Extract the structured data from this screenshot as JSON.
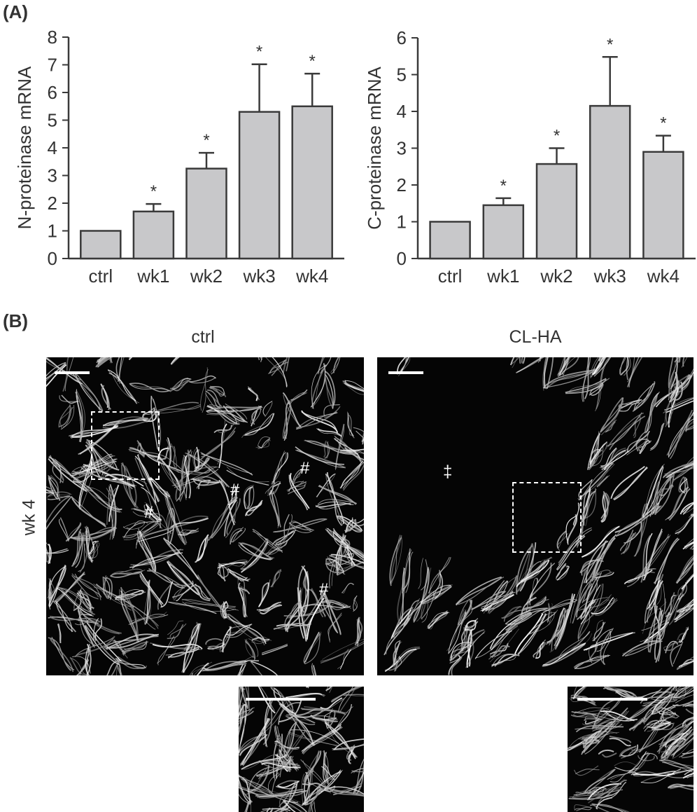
{
  "panel_a_label": "(A)",
  "panel_b_label": "(B)",
  "chart_data": [
    {
      "type": "bar",
      "categories": [
        "ctrl",
        "wk1",
        "wk2",
        "wk3",
        "wk4"
      ],
      "values": [
        1.0,
        1.7,
        3.25,
        5.3,
        5.5
      ],
      "error_upper": [
        0.0,
        0.27,
        0.57,
        1.72,
        1.18
      ],
      "significance": [
        "",
        "*",
        "*",
        "*",
        "*"
      ],
      "ylabel": "N-proteinase mRNA",
      "xlabel": "",
      "ylim": [
        0,
        8
      ],
      "yticks": [
        0,
        1,
        2,
        3,
        4,
        5,
        6,
        7,
        8
      ],
      "bar_color": "#c8c8ca"
    },
    {
      "type": "bar",
      "categories": [
        "ctrl",
        "wk1",
        "wk2",
        "wk3",
        "wk4"
      ],
      "values": [
        1.0,
        1.45,
        2.57,
        4.15,
        2.9
      ],
      "error_upper": [
        0.0,
        0.19,
        0.43,
        1.33,
        0.44
      ],
      "significance": [
        "",
        "*",
        "*",
        "*",
        "*"
      ],
      "ylabel": "C-proteinase mRNA",
      "xlabel": "",
      "ylim": [
        0,
        6
      ],
      "yticks": [
        0,
        1,
        2,
        3,
        4,
        5,
        6
      ],
      "bar_color": "#c8c8ca"
    }
  ],
  "panel_b": {
    "col_titles": [
      "ctrl",
      "CL-HA"
    ],
    "row_label": "wk 4",
    "ctrl_markers": [
      "#",
      "#",
      "#",
      "#"
    ],
    "clha_marker": "‡"
  }
}
